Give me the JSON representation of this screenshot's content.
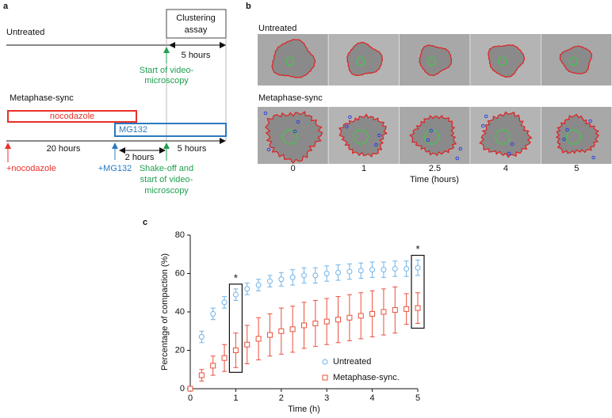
{
  "panel_a": {
    "letter": "a",
    "untreated": "Untreated",
    "clustering_assay": [
      "Clustering",
      "assay"
    ],
    "five_hours_top": "5 hours",
    "start_video": [
      "Start of video-",
      "microscopy"
    ],
    "metaphase_sync": "Metaphase-sync",
    "nocodazole": "nocodazole",
    "mg132": "MG132",
    "twenty_hours": "20 hours",
    "two_hours": "2 hours",
    "five_hours_bottom": "5 hours",
    "plus_nocodazole": "+nocodazole",
    "plus_mg132": "+MG132",
    "shake_off": [
      "Shake-off and",
      "start of video-",
      "microscopy"
    ]
  },
  "panel_b": {
    "letter": "b",
    "rows": [
      "Untreated",
      "Metaphase-sync"
    ],
    "times": [
      0,
      1,
      2.5,
      4,
      5
    ],
    "xlabel": "Time (hours)"
  },
  "chart_data": {
    "type": "scatter",
    "letter": "c",
    "xlabel": "Time (h)",
    "ylabel": "Percentage of compaction (%)",
    "x": [
      0,
      0.25,
      0.5,
      0.75,
      1,
      1.25,
      1.5,
      1.75,
      2,
      2.25,
      2.5,
      2.75,
      3,
      3.25,
      3.5,
      3.75,
      4,
      4.25,
      4.5,
      4.75,
      5
    ],
    "series": [
      {
        "name": "Untreated",
        "color": "#6fb3e8",
        "marker": "circle",
        "values": [
          0,
          27,
          39,
          45,
          49,
          52,
          54,
          56,
          57,
          58,
          59,
          59,
          60,
          60.5,
          61,
          61.5,
          62,
          62,
          62.5,
          62.5,
          63
        ],
        "errors": [
          0,
          3,
          3,
          3,
          3,
          3,
          3,
          3,
          3.5,
          4,
          4,
          4,
          4,
          4,
          4,
          4,
          4,
          4,
          4,
          4,
          4
        ]
      },
      {
        "name": "Metaphase-sync.",
        "color": "#e8503a",
        "marker": "square",
        "values": [
          0,
          7,
          12,
          16,
          20,
          23,
          26,
          28,
          30,
          31,
          33,
          34,
          35,
          36,
          37,
          38,
          39,
          40,
          41,
          41.5,
          42
        ],
        "errors": [
          0,
          3,
          5,
          7,
          9,
          10,
          11,
          11,
          12,
          12,
          12,
          12,
          12,
          12,
          12,
          12,
          12,
          12,
          12,
          8,
          8
        ]
      }
    ],
    "xlim": [
      0,
      5
    ],
    "xticks": [
      0,
      1,
      2,
      3,
      4,
      5
    ],
    "ylim": [
      0,
      80
    ],
    "yticks": [
      0,
      20,
      40,
      60,
      80
    ],
    "highlights": [
      {
        "x": 1,
        "label": "*"
      },
      {
        "x": 5,
        "label": "*"
      }
    ],
    "legend": "lower-right"
  }
}
